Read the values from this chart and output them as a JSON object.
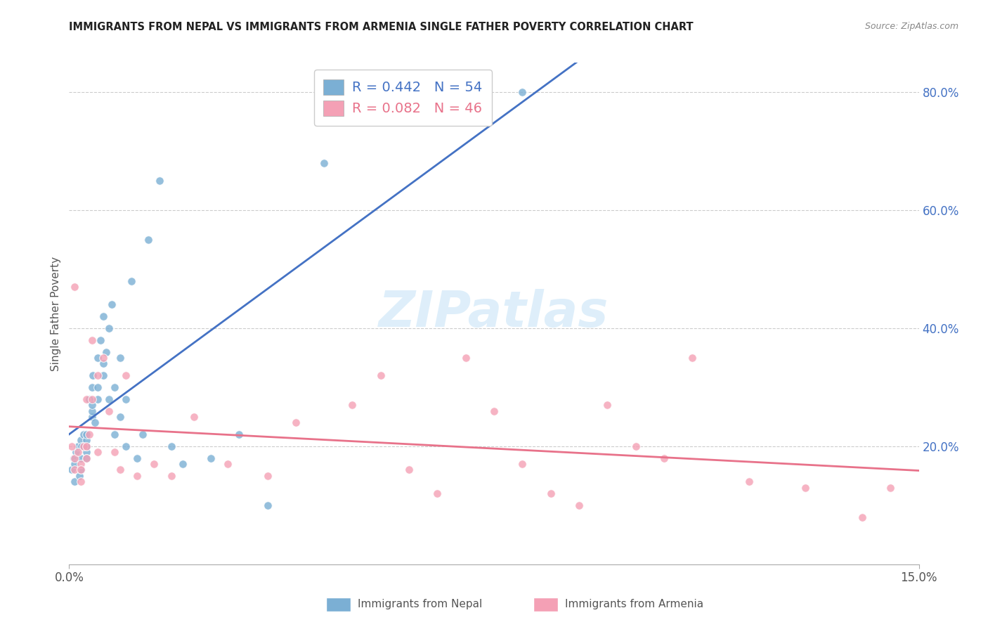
{
  "title": "IMMIGRANTS FROM NEPAL VS IMMIGRANTS FROM ARMENIA SINGLE FATHER POVERTY CORRELATION CHART",
  "source": "Source: ZipAtlas.com",
  "ylabel": "Single Father Poverty",
  "x_min": 0.0,
  "x_max": 0.15,
  "y_min": 0.0,
  "y_max": 0.85,
  "right_yticks": [
    0.2,
    0.4,
    0.6,
    0.8
  ],
  "right_ytick_labels": [
    "20.0%",
    "40.0%",
    "60.0%",
    "80.0%"
  ],
  "nepal_R": 0.442,
  "nepal_N": 54,
  "armenia_R": 0.082,
  "armenia_N": 46,
  "nepal_color": "#7BAFD4",
  "armenia_color": "#F4A0B5",
  "nepal_line_color": "#4472C4",
  "armenia_line_color": "#E8728A",
  "legend_label_nepal": "Immigrants from Nepal",
  "legend_label_armenia": "Immigrants from Armenia",
  "watermark": "ZIPatlas",
  "nepal_x": [
    0.0005,
    0.0008,
    0.001,
    0.001,
    0.0012,
    0.0015,
    0.0018,
    0.002,
    0.002,
    0.002,
    0.0022,
    0.0025,
    0.003,
    0.003,
    0.003,
    0.003,
    0.003,
    0.0035,
    0.004,
    0.004,
    0.004,
    0.004,
    0.0042,
    0.0045,
    0.005,
    0.005,
    0.005,
    0.0055,
    0.006,
    0.006,
    0.006,
    0.0065,
    0.007,
    0.007,
    0.0075,
    0.008,
    0.008,
    0.009,
    0.009,
    0.01,
    0.01,
    0.011,
    0.012,
    0.013,
    0.014,
    0.016,
    0.018,
    0.02,
    0.025,
    0.03,
    0.035,
    0.045,
    0.05,
    0.08
  ],
  "nepal_y": [
    0.16,
    0.18,
    0.14,
    0.17,
    0.19,
    0.2,
    0.15,
    0.21,
    0.18,
    0.16,
    0.2,
    0.22,
    0.19,
    0.2,
    0.21,
    0.22,
    0.18,
    0.28,
    0.25,
    0.3,
    0.26,
    0.27,
    0.32,
    0.24,
    0.35,
    0.3,
    0.28,
    0.38,
    0.34,
    0.32,
    0.42,
    0.36,
    0.4,
    0.28,
    0.44,
    0.3,
    0.22,
    0.25,
    0.35,
    0.28,
    0.2,
    0.48,
    0.18,
    0.22,
    0.55,
    0.65,
    0.2,
    0.17,
    0.18,
    0.22,
    0.1,
    0.68,
    0.8,
    0.8
  ],
  "armenia_x": [
    0.0005,
    0.001,
    0.001,
    0.001,
    0.0015,
    0.002,
    0.002,
    0.002,
    0.0025,
    0.003,
    0.003,
    0.003,
    0.0035,
    0.004,
    0.004,
    0.005,
    0.005,
    0.006,
    0.007,
    0.008,
    0.009,
    0.01,
    0.012,
    0.015,
    0.018,
    0.022,
    0.028,
    0.035,
    0.04,
    0.05,
    0.055,
    0.06,
    0.065,
    0.07,
    0.075,
    0.08,
    0.085,
    0.09,
    0.095,
    0.1,
    0.105,
    0.11,
    0.12,
    0.13,
    0.14,
    0.145
  ],
  "armenia_y": [
    0.2,
    0.47,
    0.18,
    0.16,
    0.19,
    0.17,
    0.16,
    0.14,
    0.2,
    0.28,
    0.2,
    0.18,
    0.22,
    0.38,
    0.28,
    0.32,
    0.19,
    0.35,
    0.26,
    0.19,
    0.16,
    0.32,
    0.15,
    0.17,
    0.15,
    0.25,
    0.17,
    0.15,
    0.24,
    0.27,
    0.32,
    0.16,
    0.12,
    0.35,
    0.26,
    0.17,
    0.12,
    0.1,
    0.27,
    0.2,
    0.18,
    0.35,
    0.14,
    0.13,
    0.08,
    0.13
  ]
}
